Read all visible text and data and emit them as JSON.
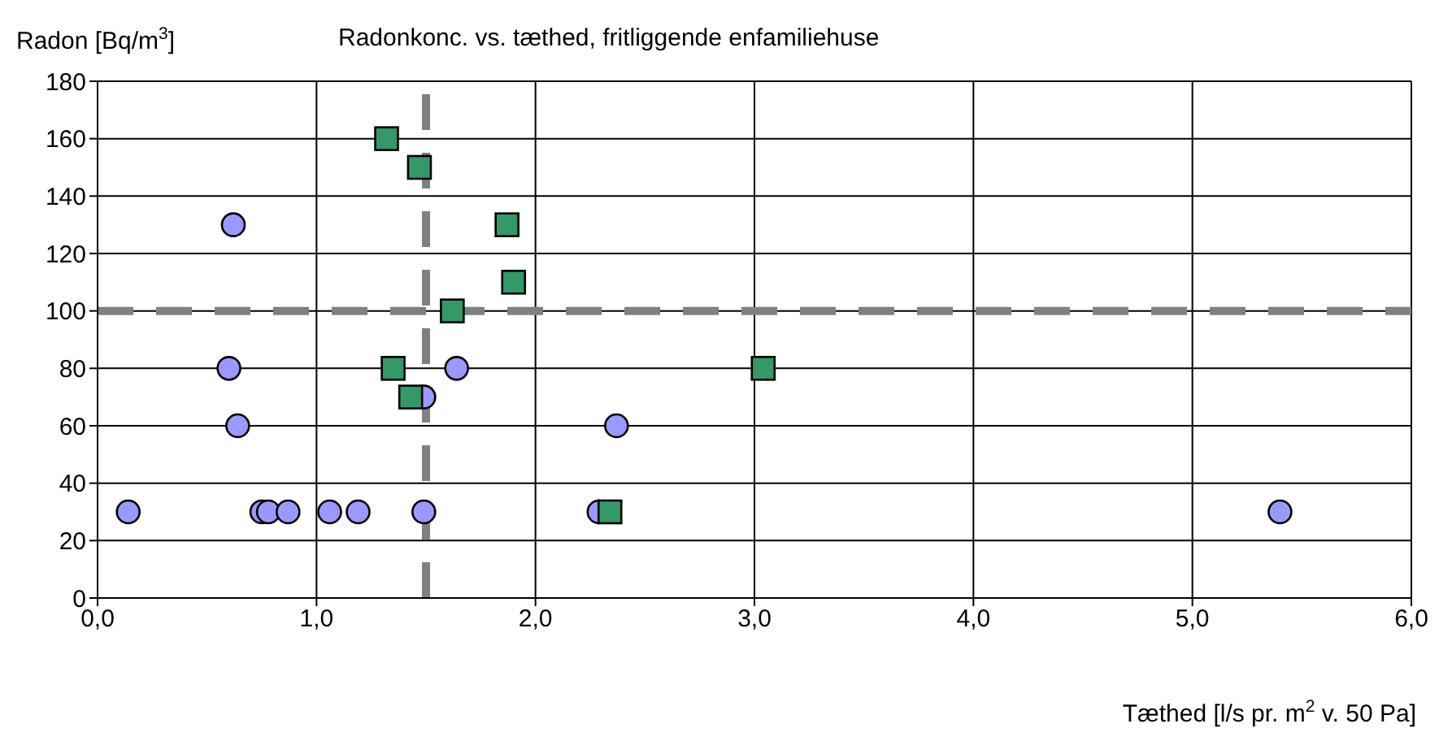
{
  "chart_data": {
    "type": "scatter",
    "title": "Radonkonc. vs. tæthed, fritliggende enfamiliehuse",
    "xlabel": "Tæthed [l/s pr. m$^{2}$ v. 50 Pa]",
    "ylabel": "Radon [Bq/m$^{3}$]",
    "xlim": [
      0,
      6
    ],
    "xticks": [
      {
        "value": 0,
        "label": "0,0"
      },
      {
        "value": 1,
        "label": "1,0"
      },
      {
        "value": 2,
        "label": "2,0"
      },
      {
        "value": 3,
        "label": "3,0"
      },
      {
        "value": 4,
        "label": "4,0"
      },
      {
        "value": 5,
        "label": "5,0"
      },
      {
        "value": 6,
        "label": "6,0"
      }
    ],
    "ylim": [
      0,
      180
    ],
    "yticks": [
      0,
      20,
      40,
      60,
      80,
      100,
      120,
      140,
      160,
      180
    ],
    "grid": true,
    "legend": false,
    "series": [
      {
        "color": "#9999ff",
        "marker": "circle",
        "x": [
          0.14,
          0.62,
          0.6,
          0.64,
          0.75,
          0.78,
          0.87,
          1.06,
          1.19,
          1.49,
          1.49,
          1.64,
          2.29,
          2.37,
          5.4
        ],
        "values": [
          30,
          130,
          80,
          60,
          30,
          30,
          30,
          30,
          30,
          30,
          70,
          80,
          30,
          60,
          30
        ]
      },
      {
        "color": "#339966",
        "marker": "square",
        "x": [
          1.32,
          1.47,
          1.87,
          1.9,
          1.62,
          1.35,
          1.43,
          2.34,
          3.04
        ],
        "values": [
          160,
          150,
          130,
          110,
          100,
          80,
          70,
          30,
          80
        ]
      }
    ],
    "ref_lines": [
      {
        "axis": "y",
        "value": 100,
        "color": "#808080",
        "line_style": "dashed"
      },
      {
        "axis": "x",
        "value": 1.5,
        "color": "#808080",
        "line_style": "dashed"
      }
    ]
  }
}
